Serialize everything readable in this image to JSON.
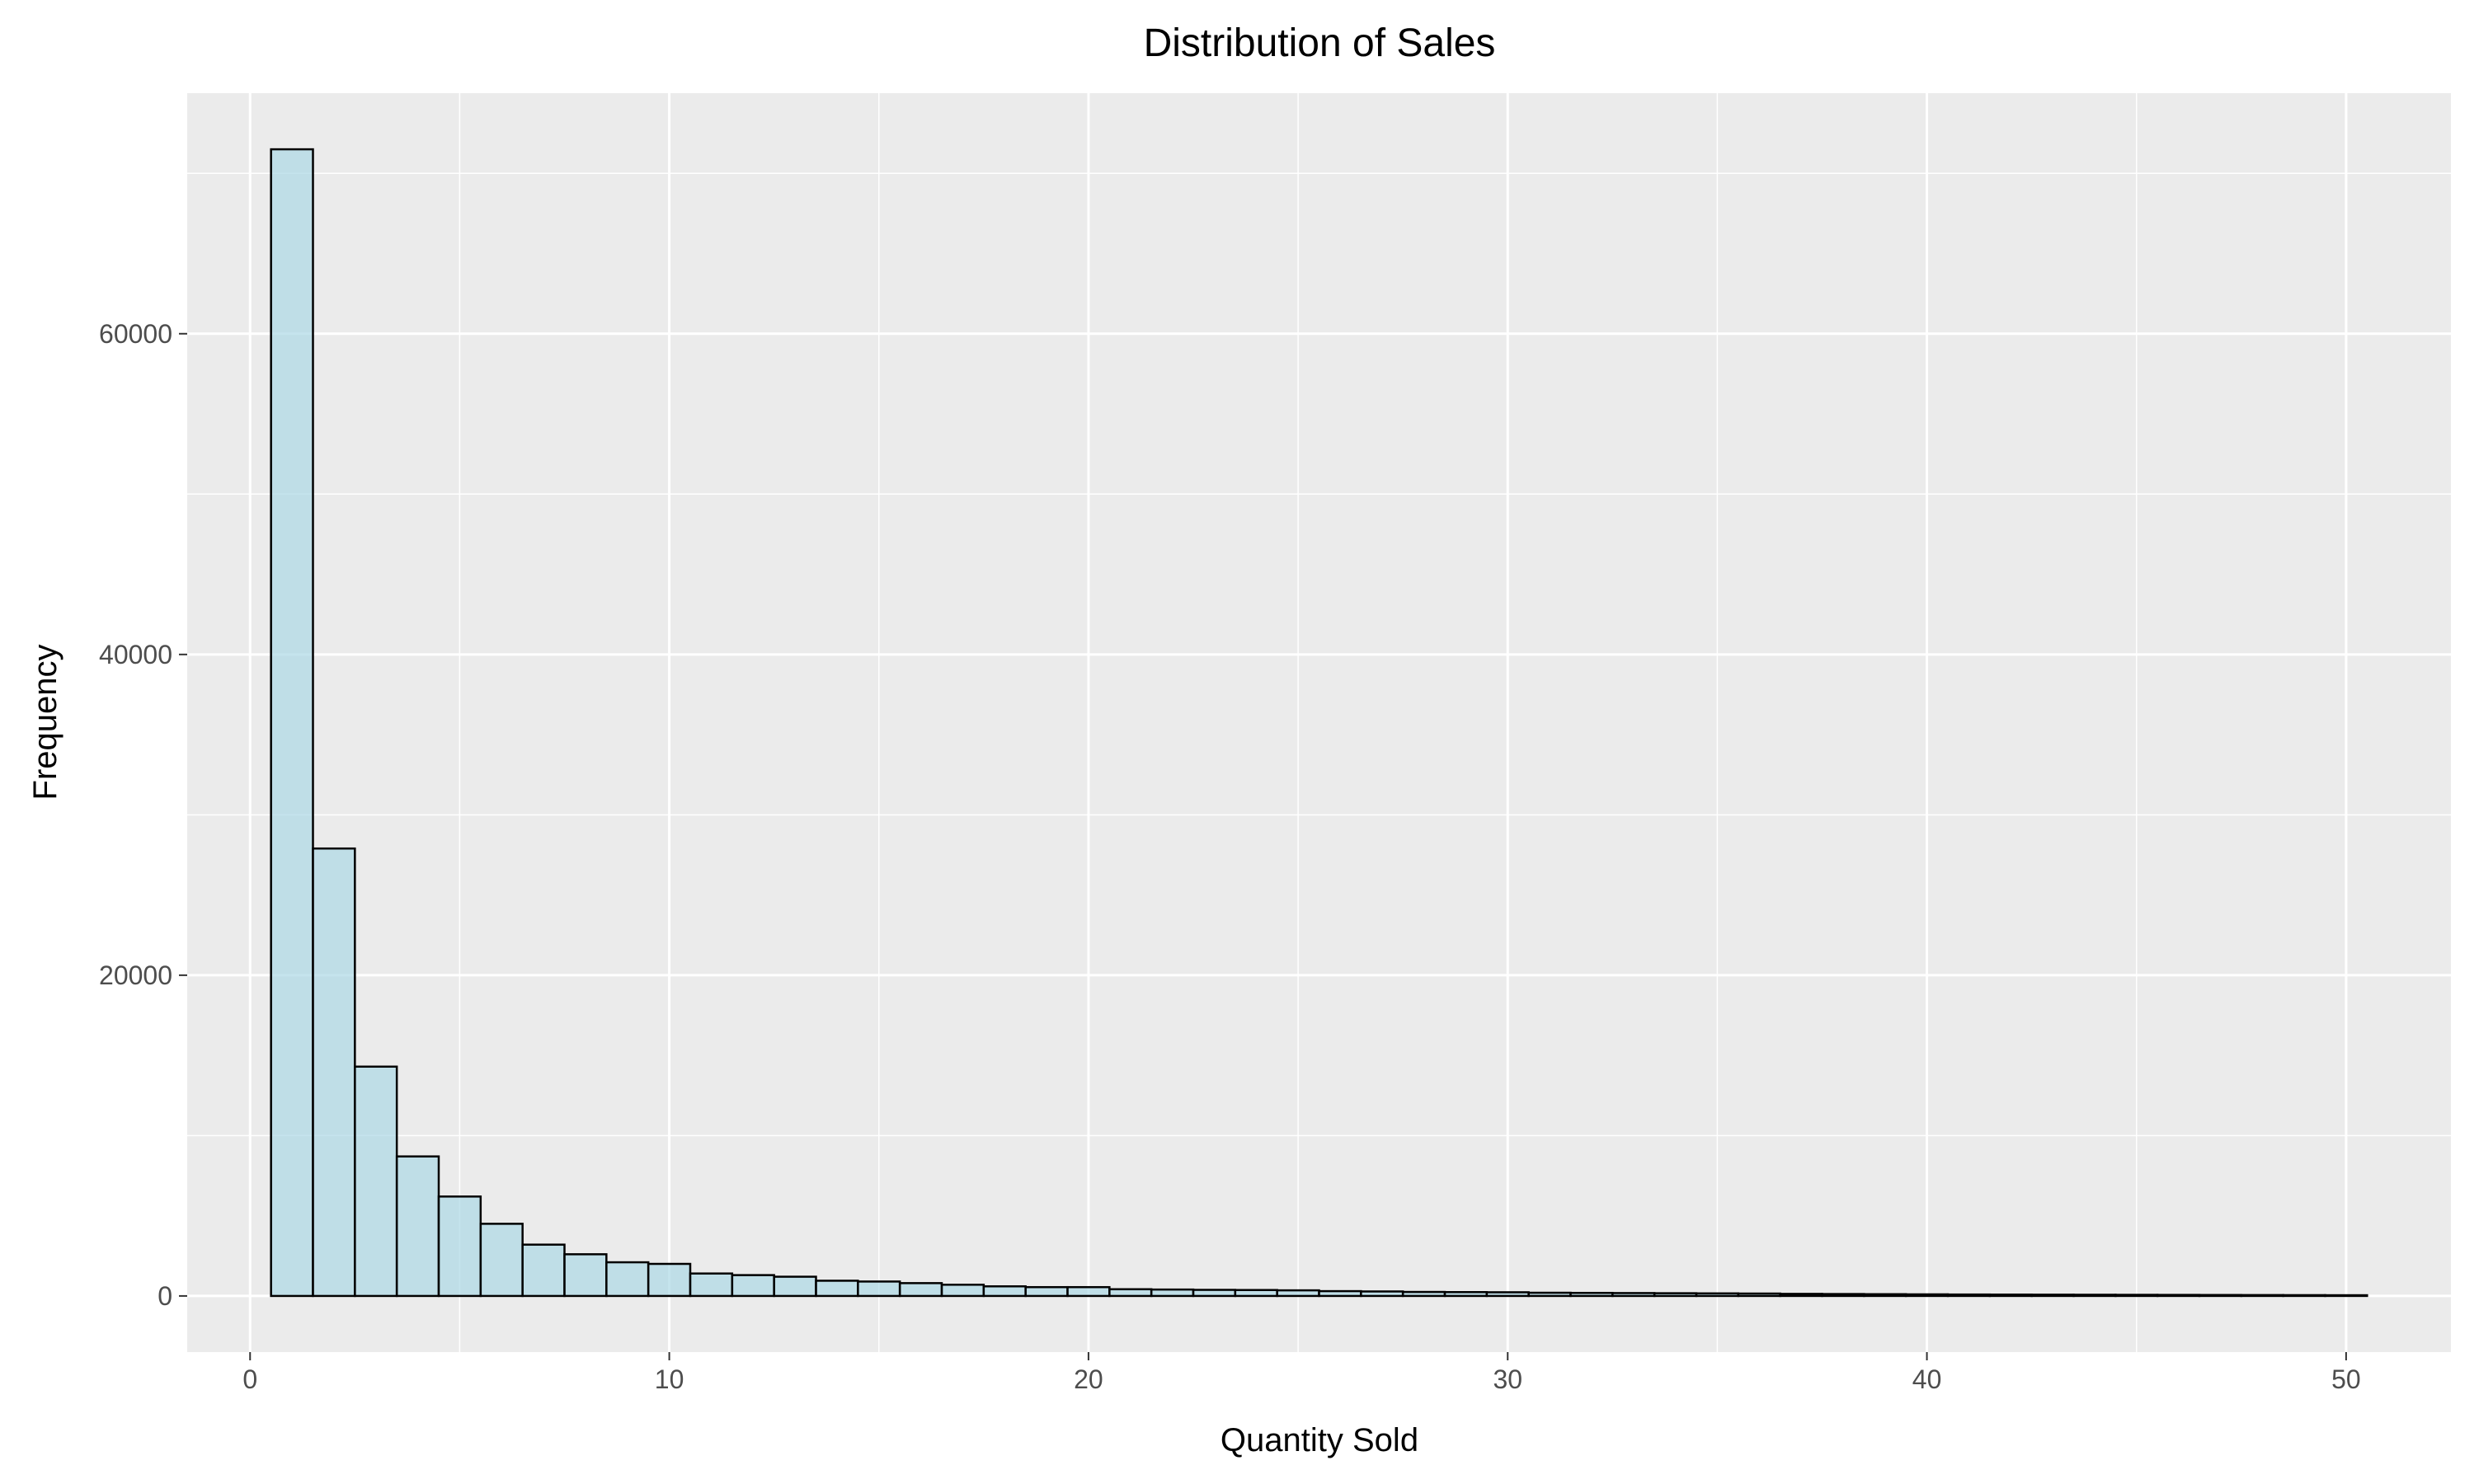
{
  "colors": {
    "panel_background": "#ebebeb",
    "gridline": "#ffffff",
    "bar_fill": "#add8e6",
    "bar_stroke": "#000000",
    "tick_label": "#4d4d4d",
    "tick_mark": "#333333"
  },
  "chart_data": {
    "type": "bar",
    "title": "Distribution of Sales",
    "xlabel": "Quantity Sold",
    "ylabel": "Frequency",
    "xlim": [
      -1.5,
      52.5
    ],
    "ylim": [
      -3500,
      75000
    ],
    "x_ticks": [
      0,
      10,
      20,
      30,
      40,
      50
    ],
    "x_tick_labels": [
      "0",
      "10",
      "20",
      "30",
      "40",
      "50"
    ],
    "y_ticks": [
      0,
      20000,
      40000,
      60000
    ],
    "y_tick_labels": [
      "0",
      "20000",
      "40000",
      "60000"
    ],
    "grid": true,
    "bin_width": 1.0,
    "bin_centers": [
      1,
      2,
      3,
      4,
      5,
      6,
      7,
      8,
      9,
      10,
      11,
      12,
      13,
      14,
      15,
      16,
      17,
      18,
      19,
      20,
      21,
      22,
      23,
      24,
      25,
      26,
      27,
      28,
      29,
      30,
      31,
      32,
      33,
      34,
      35,
      36,
      37,
      38,
      39,
      40,
      41,
      42,
      43,
      44,
      45,
      46,
      47,
      48,
      49,
      50
    ],
    "values": [
      71500,
      27900,
      14300,
      8700,
      6200,
      4500,
      3200,
      2600,
      2100,
      2000,
      1400,
      1300,
      1200,
      950,
      900,
      800,
      700,
      600,
      550,
      550,
      420,
      400,
      380,
      370,
      350,
      300,
      280,
      250,
      240,
      230,
      200,
      190,
      180,
      170,
      160,
      150,
      130,
      120,
      110,
      100,
      90,
      85,
      80,
      75,
      70,
      65,
      60,
      55,
      50,
      45
    ]
  }
}
